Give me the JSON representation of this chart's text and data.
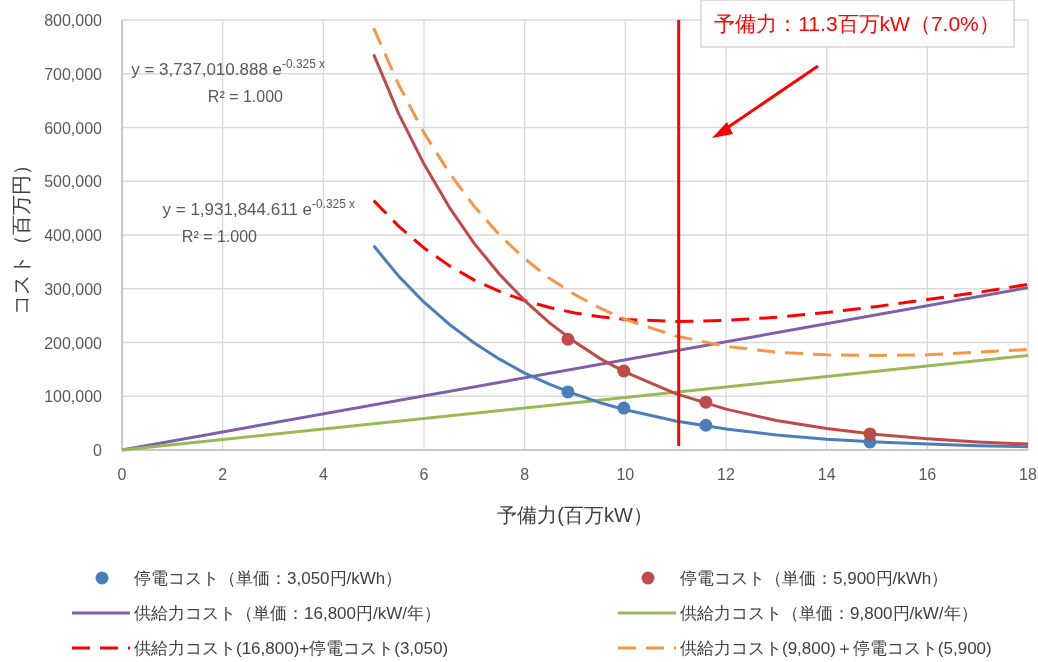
{
  "chart_data": {
    "type": "line",
    "xlabel": "予備力(百万kW）",
    "ylabel": "コスト（百万円）",
    "xlim": [
      0,
      18
    ],
    "ylim": [
      0,
      800000
    ],
    "xticks": [
      0,
      2,
      4,
      6,
      8,
      10,
      12,
      14,
      16,
      18
    ],
    "yticks": [
      0,
      {
        "value": 100000,
        "label": "100,000"
      },
      {
        "value": 200000,
        "label": "200,000"
      },
      {
        "value": 300000,
        "label": "300,000"
      },
      {
        "value": 400000,
        "label": "400,000"
      },
      {
        "value": 500000,
        "label": "500,000"
      },
      {
        "value": 600000,
        "label": "600,000"
      },
      {
        "value": 700000,
        "label": "700,000"
      },
      {
        "value": 800000,
        "label": "800,000"
      }
    ],
    "grid": true,
    "legend": "bottom",
    "series": [
      {
        "name": "停電コスト（単価：3,050円/kWh）",
        "type": "scatter",
        "marker": "circle",
        "color": "#4a7ebb",
        "x": [
          8.86,
          9.97,
          11.6,
          14.86
        ],
        "values": [
          108000,
          78000,
          46000,
          15000
        ]
      },
      {
        "name": "停電コスト（単価：5,900円/kWh）",
        "type": "scatter",
        "marker": "circle",
        "color": "#be4b48",
        "x": [
          8.86,
          9.97,
          11.6,
          14.86
        ],
        "values": [
          206000,
          147000,
          89000,
          30000
        ]
      },
      {
        "name": "供給力コスト（単価：16,800円/kW/年）",
        "type": "line",
        "marker": "none",
        "line_style": "solid",
        "color": "#7f5fa8",
        "x": [
          0,
          18
        ],
        "values": [
          0,
          302000
        ]
      },
      {
        "name": "供給力コスト（単価：9,800円/kW/年）",
        "type": "line",
        "marker": "none",
        "line_style": "solid",
        "color": "#98b954",
        "x": [
          0,
          18
        ],
        "values": [
          0,
          176000
        ]
      },
      {
        "name": "供給力コスト(16,800)+停電コスト(3,050)",
        "type": "line",
        "marker": "none",
        "line_style": "dashed",
        "color": "#ff0000",
        "x": [
          5,
          5.5,
          6,
          6.5,
          7,
          7.5,
          8,
          8.5,
          9,
          9.5,
          10,
          11,
          12,
          13,
          14,
          15,
          16,
          17,
          18
        ],
        "values": [
          464000,
          416000,
          376000,
          343000,
          316000,
          295000,
          278000,
          265000,
          255000,
          248000,
          243000,
          239000,
          241000,
          247000,
          256000,
          267000,
          280000,
          293000,
          308000
        ]
      },
      {
        "name": "供給力コスト(9,800)＋停電コスト(5,900)",
        "type": "line",
        "marker": "none",
        "line_style": "dashed",
        "color": "#f79646",
        "x": [
          5,
          5.5,
          6,
          6.5,
          7,
          7.5,
          8,
          8.5,
          9,
          9.5,
          10,
          11,
          12,
          13,
          14,
          15,
          16,
          17,
          18
        ],
        "values": [
          785000,
          679000,
          590000,
          516000,
          453000,
          400000,
          356000,
          319000,
          289000,
          264000,
          243000,
          212000,
          193000,
          182000,
          177000,
          176000,
          177000,
          182000,
          187000
        ]
      },
      {
        "type": "line",
        "marker": "none",
        "line_style": "solid",
        "color": "#4a7ebb",
        "x": [
          5,
          5.5,
          6,
          6.5,
          7,
          7.5,
          8,
          8.5,
          9,
          9.5,
          10,
          11,
          12,
          13,
          14,
          15,
          16,
          17,
          18
        ],
        "values": [
          380000,
          323000,
          275000,
          234000,
          199000,
          169000,
          143000,
          122000,
          104000,
          88000,
          75000,
          54000,
          39000,
          28000,
          20000,
          15000,
          11000,
          8000,
          6000
        ]
      },
      {
        "type": "line",
        "marker": "none",
        "line_style": "solid",
        "color": "#be4b48",
        "x": [
          5,
          5.5,
          6,
          6.5,
          7,
          7.5,
          8,
          8.5,
          9,
          9.5,
          10,
          11,
          12,
          13,
          14,
          15,
          16,
          17,
          18
        ],
        "values": [
          736000,
          625000,
          532000,
          452000,
          384000,
          327000,
          278000,
          236000,
          201000,
          170000,
          145000,
          105000,
          76000,
          55000,
          40000,
          29000,
          21000,
          15000,
          11000
        ]
      }
    ],
    "ref_lines": [
      {
        "axis": "x",
        "value": 11.06,
        "label": "予備力：11.3百万kW（7.0%）",
        "color": "#ff0000"
      }
    ],
    "annotations": [
      "y = 3,737,010.888 e$^{-0.325 x}$",
      "R² = 1.000",
      "y = 1,931,844.611 e$^{-0.325 x}$",
      "R² = 1.000"
    ]
  }
}
